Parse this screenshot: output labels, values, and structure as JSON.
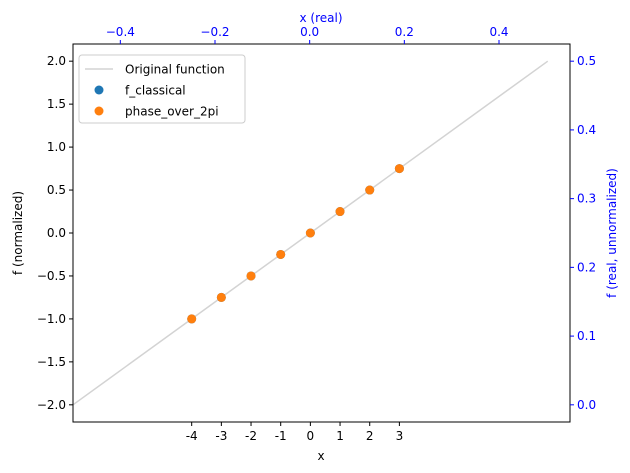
{
  "chart_data": {
    "type": "scatter",
    "title": "",
    "xlabel": "x",
    "ylabel": "f (normalized)",
    "top_xlabel": "x (real)",
    "right_ylabel": "f (real, unnormalized)",
    "xlim": [
      -8,
      8.75
    ],
    "ylim": [
      -2.2,
      2.2
    ],
    "top_xlim": [
      -0.5,
      0.55
    ],
    "right_ylim": [
      -0.025,
      0.525
    ],
    "x_ticks": [
      -4,
      -3,
      -2,
      -1,
      0,
      1,
      2,
      3
    ],
    "x_tick_labels": [
      "-4",
      "-3",
      "-2",
      "-1",
      "0",
      "1",
      "2",
      "3"
    ],
    "y_ticks": [
      -2.0,
      -1.5,
      -1.0,
      -0.5,
      0.0,
      0.5,
      1.0,
      1.5,
      2.0
    ],
    "y_tick_labels": [
      "−2.0",
      "−1.5",
      "−1.0",
      "−0.5",
      "0.0",
      "0.5",
      "1.0",
      "1.5",
      "2.0"
    ],
    "top_x_ticks": [
      -0.4,
      -0.2,
      0.0,
      0.2,
      0.4
    ],
    "top_x_tick_labels": [
      "−0.4",
      "−0.2",
      "0.0",
      "0.2",
      "0.4"
    ],
    "right_y_ticks": [
      0.0,
      0.1,
      0.2,
      0.3,
      0.4,
      0.5
    ],
    "right_y_tick_labels": [
      "0.0",
      "0.1",
      "0.2",
      "0.3",
      "0.4",
      "0.5"
    ],
    "legend_position": "top-left",
    "grid": false,
    "series": [
      {
        "name": "Original function",
        "kind": "line",
        "color": "#d3d3d3",
        "x": [
          -8,
          8
        ],
        "y": [
          -2.0,
          2.0
        ]
      },
      {
        "name": "f_classical",
        "kind": "scatter",
        "color": "#1f77b4",
        "x": [
          -4,
          -3,
          -2,
          -1,
          0,
          1,
          2,
          3
        ],
        "y": [
          -1.0,
          -0.75,
          -0.5,
          -0.25,
          0.0,
          0.25,
          0.5,
          0.75
        ]
      },
      {
        "name": "phase_over_2pi",
        "kind": "scatter",
        "color": "#ff7f0e",
        "x": [
          -4,
          -3,
          -2,
          -1,
          0,
          1,
          2,
          3
        ],
        "y": [
          -1.0,
          -0.75,
          -0.5,
          -0.25,
          0.0,
          0.25,
          0.5,
          0.75
        ]
      }
    ]
  },
  "colors": {
    "secondary_axis": "#0000ff"
  }
}
